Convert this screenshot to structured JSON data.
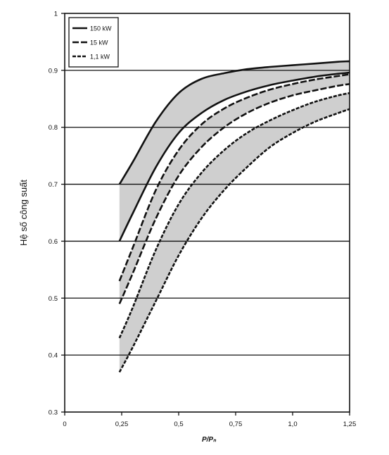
{
  "chart_data": {
    "type": "line",
    "title": "",
    "xlabel": "P/Pₙ",
    "ylabel": "Hệ số công suất",
    "xlim": [
      0,
      1.25
    ],
    "ylim": [
      0.3,
      1.0
    ],
    "x_ticks": [
      0,
      0.25,
      0.5,
      0.75,
      1.0,
      1.25
    ],
    "x_tick_labels": [
      "0",
      "0,25",
      "0,5",
      "0,75",
      "1,0",
      "1,25"
    ],
    "y_ticks": [
      0.3,
      0.4,
      0.5,
      0.6,
      0.7,
      0.8,
      0.9,
      1.0
    ],
    "y_tick_labels": [
      "0.3",
      "0.4",
      "0.5",
      "0.6",
      "0.7",
      "0.8",
      "0.9",
      "1"
    ],
    "grid": "horizontal",
    "legend_position": "top-left",
    "legend": [
      {
        "label": "150 kW",
        "style": "solid"
      },
      {
        "label": "15 kW",
        "style": "dashed"
      },
      {
        "label": "1,1 kW",
        "style": "dashed-fine"
      }
    ],
    "band_color": "#cfcfcf",
    "series": [
      {
        "legend_ref": "150 kW",
        "band": "upper",
        "style": "solid",
        "x": [
          0.24,
          0.3,
          0.4,
          0.5,
          0.6,
          0.7,
          0.8,
          0.9,
          1.0,
          1.1,
          1.2,
          1.25
        ],
        "y": [
          0.7,
          0.74,
          0.81,
          0.86,
          0.885,
          0.895,
          0.902,
          0.906,
          0.909,
          0.912,
          0.915,
          0.916
        ]
      },
      {
        "legend_ref": "150 kW",
        "band": "lower",
        "style": "solid",
        "x": [
          0.24,
          0.3,
          0.4,
          0.5,
          0.6,
          0.7,
          0.8,
          0.9,
          1.0,
          1.1,
          1.2,
          1.25
        ],
        "y": [
          0.6,
          0.65,
          0.73,
          0.79,
          0.825,
          0.848,
          0.863,
          0.874,
          0.882,
          0.889,
          0.894,
          0.896
        ]
      },
      {
        "legend_ref": "15 kW",
        "band": "upper",
        "style": "dashed",
        "x": [
          0.24,
          0.3,
          0.4,
          0.5,
          0.6,
          0.7,
          0.8,
          0.9,
          1.0,
          1.1,
          1.2,
          1.25
        ],
        "y": [
          0.53,
          0.59,
          0.69,
          0.76,
          0.805,
          0.833,
          0.852,
          0.866,
          0.876,
          0.884,
          0.89,
          0.893
        ]
      },
      {
        "legend_ref": "15 kW",
        "band": "lower",
        "style": "dashed",
        "x": [
          0.24,
          0.3,
          0.4,
          0.5,
          0.6,
          0.7,
          0.8,
          0.9,
          1.0,
          1.1,
          1.2,
          1.25
        ],
        "y": [
          0.49,
          0.545,
          0.64,
          0.715,
          0.765,
          0.8,
          0.825,
          0.843,
          0.856,
          0.865,
          0.873,
          0.876
        ]
      },
      {
        "legend_ref": "1,1 kW",
        "band": "upper",
        "style": "dashed-fine",
        "x": [
          0.24,
          0.3,
          0.4,
          0.5,
          0.6,
          0.7,
          0.8,
          0.9,
          1.0,
          1.1,
          1.2,
          1.25
        ],
        "y": [
          0.43,
          0.485,
          0.585,
          0.665,
          0.72,
          0.76,
          0.79,
          0.812,
          0.83,
          0.845,
          0.856,
          0.86
        ]
      },
      {
        "legend_ref": "1,1 kW",
        "band": "lower",
        "style": "dashed-fine",
        "x": [
          0.24,
          0.3,
          0.4,
          0.5,
          0.6,
          0.7,
          0.8,
          0.9,
          1.0,
          1.1,
          1.2,
          1.25
        ],
        "y": [
          0.37,
          0.415,
          0.495,
          0.575,
          0.64,
          0.69,
          0.73,
          0.765,
          0.79,
          0.81,
          0.825,
          0.832
        ]
      }
    ]
  }
}
